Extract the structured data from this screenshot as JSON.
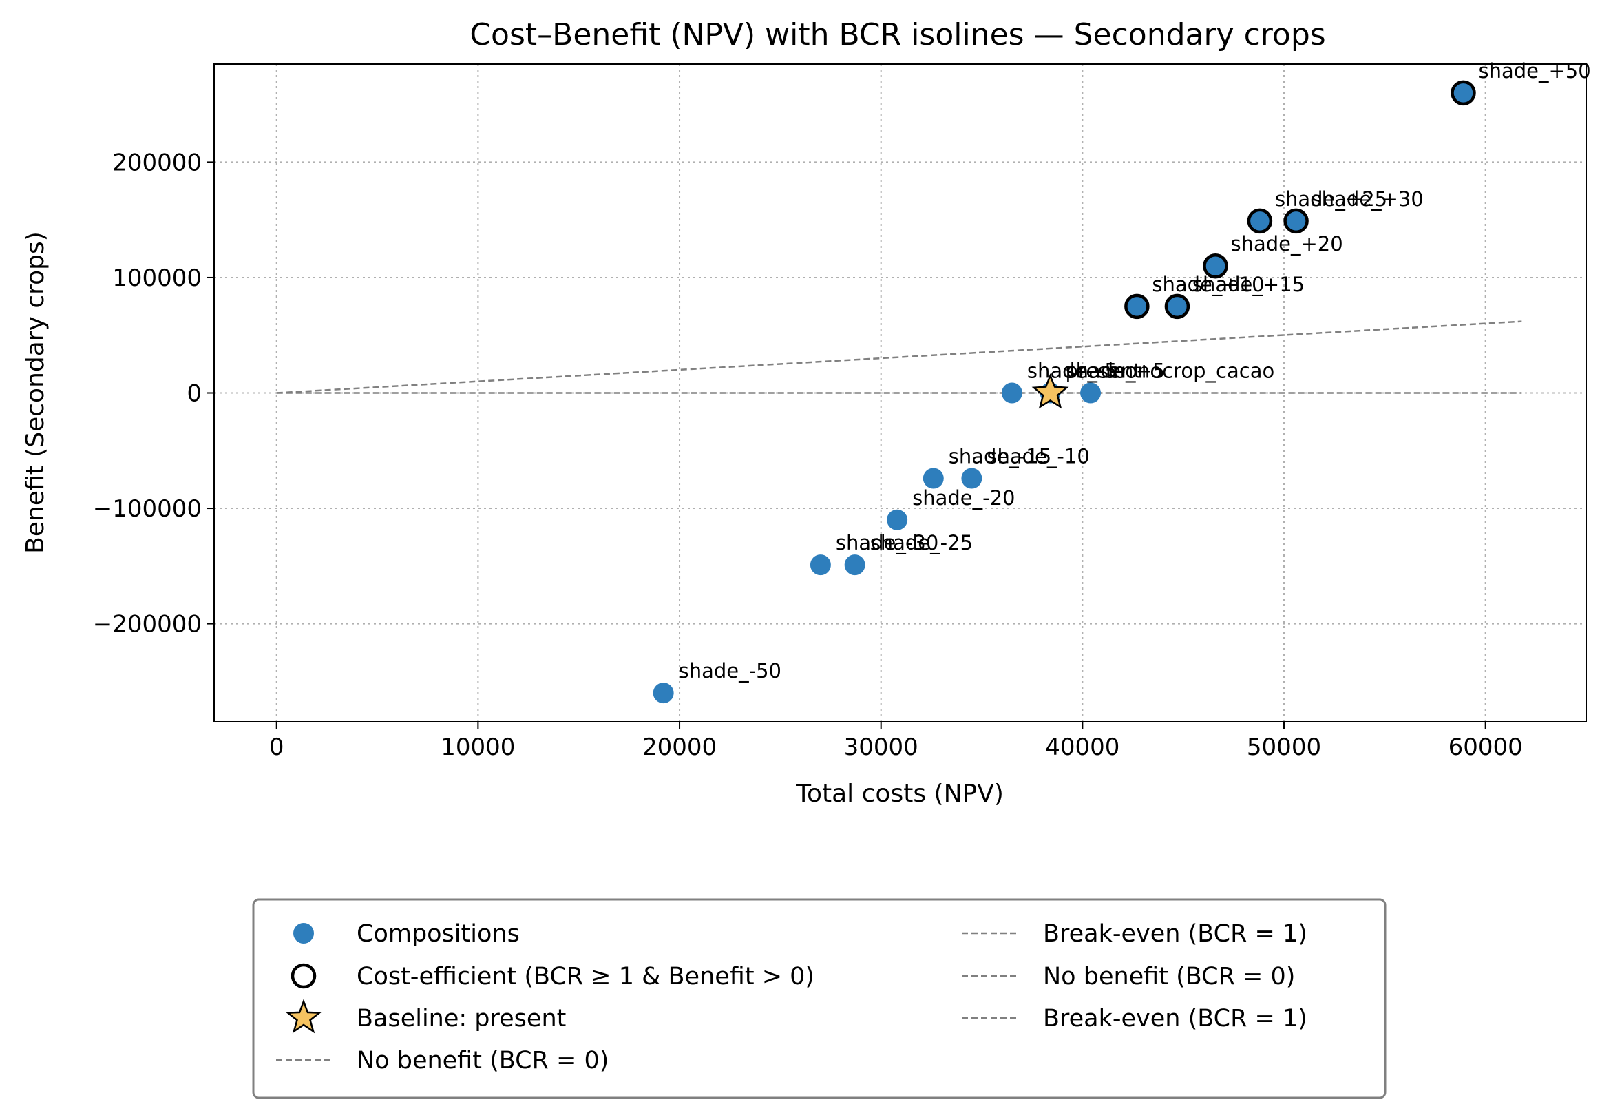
{
  "chart_data": {
    "type": "scatter",
    "title": "Cost–Benefit (NPV) with BCR isolines — Secondary crops",
    "xlabel": "Total costs (NPV)",
    "ylabel": "Benefit (Secondary crops)",
    "xlim": [
      -3100,
      65000
    ],
    "ylim": [
      -285000,
      285000
    ],
    "xticks": [
      0,
      10000,
      20000,
      30000,
      40000,
      50000,
      60000
    ],
    "yticks": [
      -200000,
      -100000,
      0,
      100000,
      200000
    ],
    "grid": true,
    "legend_placement": "below",
    "colors": {
      "composition": "#2e7ebc",
      "baseline": "#f5c361",
      "isoline": "#808080"
    },
    "points": [
      {
        "label": "shade_-50",
        "x": 19200,
        "y": -260000,
        "efficient": false
      },
      {
        "label": "shade_-30",
        "x": 27000,
        "y": -149000,
        "efficient": false
      },
      {
        "label": "shade_-25",
        "x": 28700,
        "y": -149000,
        "efficient": false
      },
      {
        "label": "shade_-20",
        "x": 30800,
        "y": -110000,
        "efficient": false
      },
      {
        "label": "shade_-15",
        "x": 32600,
        "y": -74000,
        "efficient": false
      },
      {
        "label": "shade_-10",
        "x": 34500,
        "y": -74000,
        "efficient": false
      },
      {
        "label": "shade_-5",
        "x": 36500,
        "y": 0,
        "efficient": false
      },
      {
        "label": "present",
        "x": 38400,
        "y": 0,
        "efficient": false
      },
      {
        "label": "shade_+5",
        "x": 38400,
        "y": 0,
        "efficient": false
      },
      {
        "label": "monocrop_cacao",
        "x": 40400,
        "y": 0,
        "efficient": false
      },
      {
        "label": "shade_+10",
        "x": 42700,
        "y": 75000,
        "efficient": true
      },
      {
        "label": "shade_+15",
        "x": 44700,
        "y": 75000,
        "efficient": true
      },
      {
        "label": "shade_+20",
        "x": 46600,
        "y": 110000,
        "efficient": true
      },
      {
        "label": "shade_+25",
        "x": 48800,
        "y": 149000,
        "efficient": true
      },
      {
        "label": "shade_+30",
        "x": 50600,
        "y": 149000,
        "efficient": true
      },
      {
        "label": "shade_+50",
        "x": 58900,
        "y": 260000,
        "efficient": true
      }
    ],
    "baseline": {
      "label": "present",
      "x": 38400,
      "y": 0
    },
    "isolines": [
      {
        "name": "Break-even (BCR = 1)",
        "bcr": 1,
        "x_range": [
          0,
          61800
        ]
      },
      {
        "name": "No benefit (BCR = 0)",
        "bcr": 0,
        "x_range": [
          0,
          61800
        ]
      }
    ],
    "legend": [
      {
        "symbol": "composition",
        "label": "Compositions"
      },
      {
        "symbol": "efficient",
        "label": "Cost-efficient (BCR ≥ 1 & Benefit > 0)"
      },
      {
        "symbol": "baseline",
        "label": "Baseline: present"
      },
      {
        "symbol": "dashed",
        "label": "No benefit (BCR = 0)"
      },
      {
        "symbol": "dashed",
        "label": "Break-even (BCR = 1)"
      },
      {
        "symbol": "dashed",
        "label": "No benefit (BCR = 0)"
      },
      {
        "symbol": "dashed",
        "label": "Break-even (BCR = 1)"
      }
    ]
  }
}
